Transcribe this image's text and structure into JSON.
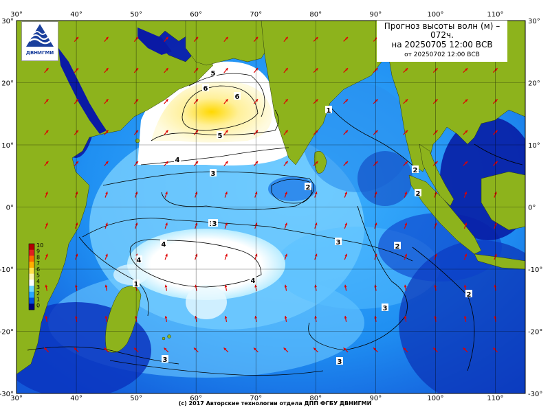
{
  "title": {
    "line1": "Прогноз высоты волн (м) –",
    "line2": "072ч.",
    "line3": "на 20250705 12:00 ВСВ",
    "line4": "от 20250702 12:00 ВСВ"
  },
  "footer": "(c) 2017 Авторские технологии отдела ДПП ФГБУ ДВНИГМИ",
  "logo": {
    "text": "ДВНИГМИ",
    "icon": "wave-emblem-icon"
  },
  "axes": {
    "lon_ticks": [
      "30",
      "40",
      "50",
      "60",
      "70",
      "80",
      "90",
      "100",
      "110"
    ],
    "lat_ticks": [
      "30",
      "20",
      "10",
      "0",
      "-10",
      "-20",
      "-30"
    ],
    "lat_ticks_right": [
      "30",
      "20",
      "10",
      "0",
      "-10",
      "-20",
      "-30"
    ]
  },
  "colorbar": {
    "labels": [
      "10",
      "9",
      "8",
      "7",
      "6",
      "5",
      "4",
      "3",
      "2",
      "1",
      "0"
    ],
    "colors": [
      "#b30000",
      "#e02020",
      "#ff6a00",
      "#ffb000",
      "#ffe14a",
      "#fff7b0",
      "#ffffff",
      "#6fd6ff",
      "#27a6ff",
      "#0050e0",
      "#00007a"
    ]
  },
  "contour_labels": [
    "5",
    "6",
    "6",
    "5",
    "4",
    "3",
    "3",
    "4",
    "4",
    "4",
    "2",
    "3",
    "3",
    "2",
    "2",
    "1",
    "2",
    "2",
    "1",
    "3",
    "3",
    "3",
    "2",
    "2"
  ],
  "colors": {
    "land": "#8db31c",
    "sea_deep": "#0a1aa5",
    "sea_mid": "#1e8cf5",
    "sea_light": "#7fd3ff",
    "white_zone": "#ffffff",
    "yellow_zone": "#fff49a",
    "arrow": "#e00000",
    "grid": "#000000"
  }
}
